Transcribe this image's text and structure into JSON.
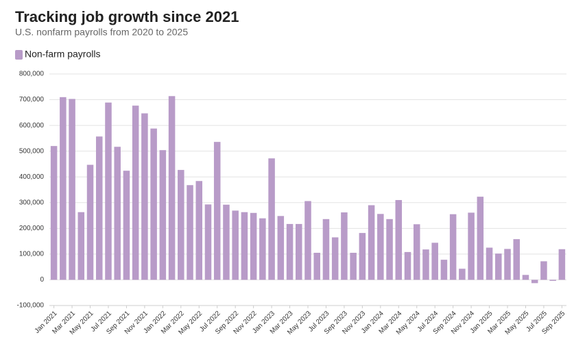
{
  "chart_data": {
    "type": "bar",
    "title": "Tracking job growth since 2021",
    "subtitle": "U.S. nonfarm payrolls from 2020 to 2025",
    "categories": [
      "Jan 2021",
      null,
      "Mar 2021",
      null,
      "May 2021",
      null,
      "Jul 2021",
      null,
      "Sep 2021",
      null,
      "Nov 2021",
      null,
      "Jan 2022",
      null,
      "Mar 2022",
      null,
      "May 2022",
      null,
      "Jul 2022",
      null,
      "Sep 2022",
      null,
      "Nov 2022",
      null,
      "Jan 2023",
      null,
      "Mar 2023",
      null,
      "May 2023",
      null,
      "Jul 2023",
      null,
      "Sep 2023",
      null,
      "Nov 2023",
      null,
      "Jan 2024",
      null,
      "Mar 2024",
      null,
      "May 2024",
      null,
      "Jul 2024",
      null,
      "Sep 2024",
      null,
      "Nov 2024",
      null,
      "Jan 2025",
      null,
      "Mar 2025",
      null,
      "May 2025",
      null,
      "Jul 2025",
      null,
      "Sep 2025"
    ],
    "series": [
      {
        "name": "Non-farm payrolls",
        "color": "#b89bc8",
        "values": [
          520000,
          710000,
          703000,
          263000,
          447000,
          557000,
          689000,
          517000,
          424000,
          677000,
          647000,
          588000,
          504000,
          714000,
          427000,
          368000,
          384000,
          293000,
          536000,
          292000,
          269000,
          263000,
          260000,
          239000,
          472000,
          248000,
          217000,
          217000,
          306000,
          105000,
          236000,
          165000,
          262000,
          105000,
          182000,
          290000,
          256000,
          236000,
          310000,
          108000,
          216000,
          118000,
          144000,
          78000,
          255000,
          43000,
          261000,
          323000,
          125000,
          102000,
          120000,
          158000,
          19000,
          -13000,
          72000,
          -4000,
          119000
        ]
      }
    ],
    "ylim": [
      -100000,
      800000
    ],
    "yticks": [
      {
        "value": -100000,
        "label": "-100,000"
      },
      0,
      {
        "value": 100000,
        "label": "100,000"
      },
      {
        "value": 200000,
        "label": "200,000"
      },
      {
        "value": 300000,
        "label": "300,000"
      },
      {
        "value": 400000,
        "label": "400,000"
      },
      {
        "value": 500000,
        "label": "500,000"
      },
      {
        "value": 600000,
        "label": "600,000"
      },
      {
        "value": 700000,
        "label": "700,000"
      },
      {
        "value": 800000,
        "label": "800,000"
      }
    ],
    "grid": true
  }
}
